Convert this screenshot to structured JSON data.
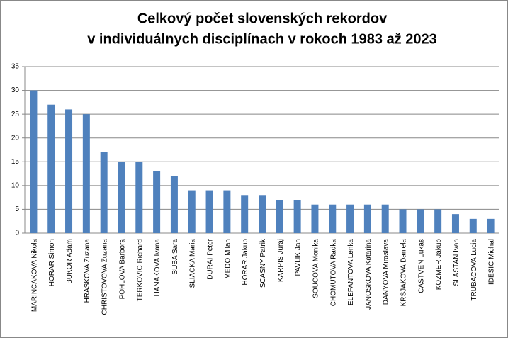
{
  "chart_data": {
    "type": "bar",
    "title": [
      "Celkový počet slovenských rekordov",
      "v individuálnych disciplínach v rokoch 1983 až 2023"
    ],
    "categories": [
      "MARINCAKOVA Nikola",
      "HORAR Simon",
      "BUKOR Adam",
      "HRASKOVA Zuzana",
      "CHRISTOVOVA Zuzana",
      "POHLOVA Barbora",
      "TERKOVIC Richard",
      "HANAKOVA Ivana",
      "SUBA Sara",
      "SLIACKA Maria",
      "DURAI Peter",
      "MEDO Milan",
      "HORAR Jakub",
      "SCASNY Patrik",
      "KARPIS Juraj",
      "PAVLIK Jan",
      "SOUCOVA Monika",
      "CHOMUTOVA Radka",
      "ELEFANTOVA Lenka",
      "JANOSKOVA Katarina",
      "DANYOVA Miroslava",
      "KRSJAKOVA Daniela",
      "CASTVEN Lukas",
      "KOZMER Jakub",
      "SLASTAN Ivan",
      "TRUBACOVA Lucia",
      "IDESIC Michal"
    ],
    "values": [
      30,
      27,
      26,
      25,
      17,
      15,
      15,
      13,
      12,
      9,
      9,
      9,
      8,
      8,
      7,
      7,
      6,
      6,
      6,
      6,
      6,
      5,
      5,
      5,
      4,
      3,
      3
    ],
    "color": "#4f81bd",
    "ylim": [
      0,
      35
    ],
    "yticks": [
      0,
      5,
      10,
      15,
      20,
      25,
      30,
      35
    ],
    "grid": true
  }
}
